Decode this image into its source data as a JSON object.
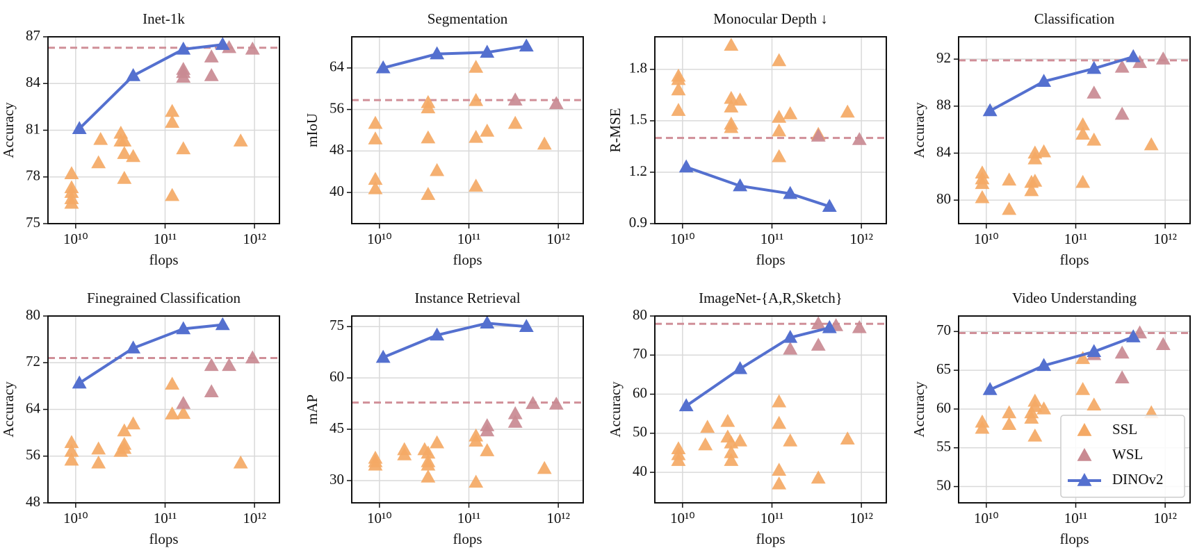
{
  "chart_data": [
    {
      "type": "scatter",
      "title": "Inet-1k",
      "x_label": "flops",
      "y_label": "Accuracy",
      "xscale": "log",
      "grid": true,
      "xlim": [
        4900000000.0,
        1900000000000.0
      ],
      "xticks": [
        {
          "value": 10000000000.0,
          "label": "10¹⁰"
        },
        {
          "value": 100000000000.0,
          "label": "10¹¹"
        },
        {
          "value": 1000000000000.0,
          "label": "10¹²"
        }
      ],
      "ylim": [
        75,
        87
      ],
      "yticks": [
        75,
        78,
        81,
        84,
        87
      ],
      "hline": 86.3,
      "hline_color": "#d08f98",
      "series": [
        {
          "mode": "markers",
          "color": "#f4a965",
          "x": [
            9000000000.0,
            9000000000.0,
            9000000000.0,
            9000000000.0,
            9000000000.0,
            19000000000.0,
            18000000000.0,
            32000000000.0,
            32000000000.0,
            35000000000.0,
            35000000000.0,
            35000000000.0,
            44000000000.0,
            120000000000.0,
            120000000000.0,
            120000000000.0,
            160000000000.0,
            700000000000.0
          ],
          "values": [
            78.2,
            77.3,
            77.0,
            76.6,
            76.3,
            80.4,
            78.9,
            80.8,
            80.3,
            80.3,
            79.5,
            77.9,
            79.3,
            82.2,
            81.5,
            76.8,
            79.8,
            80.3
          ]
        },
        {
          "mode": "markers",
          "color": "#c98a92",
          "x": [
            160000000000.0,
            160000000000.0,
            160000000000.0,
            330000000000.0,
            330000000000.0,
            520000000000.0,
            950000000000.0
          ],
          "values": [
            84.9,
            84.7,
            84.4,
            85.7,
            84.5,
            86.3,
            86.2
          ]
        },
        {
          "mode": "line",
          "color": "#5470cf",
          "x": [
            11000000000.0,
            44000000000.0,
            160000000000.0,
            440000000000.0
          ],
          "values": [
            81.1,
            84.5,
            86.2,
            86.5
          ]
        }
      ]
    },
    {
      "type": "scatter",
      "title": "Segmentation",
      "x_label": "flops",
      "y_label": "mIoU",
      "xscale": "log",
      "grid": true,
      "xlim": [
        4900000000.0,
        1900000000000.0
      ],
      "xticks": [
        {
          "value": 10000000000.0,
          "label": "10¹⁰"
        },
        {
          "value": 100000000000.0,
          "label": "10¹¹"
        },
        {
          "value": 1000000000000.0,
          "label": "10¹²"
        }
      ],
      "ylim": [
        34,
        70
      ],
      "yticks": [
        40,
        48,
        56,
        64
      ],
      "hline": 57.8,
      "hline_color": "#d08f98",
      "series": [
        {
          "mode": "markers",
          "color": "#f4a965",
          "x": [
            9000000000.0,
            9000000000.0,
            9000000000.0,
            9000000000.0,
            35000000000.0,
            35000000000.0,
            35000000000.0,
            35000000000.0,
            44000000000.0,
            120000000000.0,
            120000000000.0,
            120000000000.0,
            120000000000.0,
            160000000000.0,
            700000000000.0,
            330000000000.0
          ],
          "values": [
            53.3,
            50.3,
            42.5,
            40.7,
            57.3,
            56.3,
            50.5,
            39.6,
            44.2,
            64.1,
            57.7,
            50.6,
            41.2,
            51.8,
            49.3,
            53.3
          ]
        },
        {
          "mode": "markers",
          "color": "#c98a92",
          "x": [
            330000000000.0,
            950000000000.0
          ],
          "values": [
            57.8,
            57.1
          ]
        },
        {
          "mode": "line",
          "color": "#5470cf",
          "x": [
            11000000000.0,
            44000000000.0,
            160000000000.0,
            440000000000.0
          ],
          "values": [
            64,
            66.7,
            67,
            68.2
          ]
        }
      ]
    },
    {
      "type": "scatter",
      "title": "Monocular Depth ↓",
      "x_label": "flops",
      "y_label": "R-MSE",
      "xscale": "log",
      "grid": true,
      "xlim": [
        4900000000.0,
        1900000000000.0
      ],
      "xticks": [
        {
          "value": 10000000000.0,
          "label": "10¹⁰"
        },
        {
          "value": 100000000000.0,
          "label": "10¹¹"
        },
        {
          "value": 1000000000000.0,
          "label": "10¹²"
        }
      ],
      "ylim": [
        0.9,
        1.99
      ],
      "yticks": [
        0.9,
        1.2,
        1.5,
        1.8
      ],
      "hline": 1.4,
      "hline_color": "#d08f98",
      "series": [
        {
          "mode": "markers",
          "color": "#f4a965",
          "x": [
            9000000000.0,
            9000000000.0,
            9000000000.0,
            9000000000.0,
            35000000000.0,
            35000000000.0,
            35000000000.0,
            35000000000.0,
            35000000000.0,
            44000000000.0,
            120000000000.0,
            120000000000.0,
            120000000000.0,
            120000000000.0,
            160000000000.0,
            700000000000.0,
            330000000000.0
          ],
          "values": [
            1.76,
            1.74,
            1.68,
            1.56,
            1.94,
            1.63,
            1.58,
            1.48,
            1.46,
            1.62,
            1.85,
            1.52,
            1.44,
            1.29,
            1.54,
            1.55,
            1.42
          ]
        },
        {
          "mode": "markers",
          "color": "#c98a92",
          "x": [
            330000000000.0,
            950000000000.0
          ],
          "values": [
            1.41,
            1.39
          ]
        },
        {
          "mode": "line",
          "color": "#5470cf",
          "x": [
            11000000000.0,
            44000000000.0,
            160000000000.0,
            440000000000.0
          ],
          "values": [
            1.23,
            1.12,
            1.075,
            1.0
          ]
        }
      ]
    },
    {
      "type": "scatter",
      "title": "Classification",
      "x_label": "flops",
      "y_label": "Accuracy",
      "xscale": "log",
      "grid": true,
      "xlim": [
        4900000000.0,
        1900000000000.0
      ],
      "xticks": [
        {
          "value": 10000000000.0,
          "label": "10¹⁰"
        },
        {
          "value": 100000000000.0,
          "label": "10¹¹"
        },
        {
          "value": 1000000000000.0,
          "label": "10¹²"
        }
      ],
      "ylim": [
        78,
        93.9
      ],
      "yticks": [
        80,
        84,
        88,
        92
      ],
      "hline": 91.9,
      "hline_color": "#d08f98",
      "series": [
        {
          "mode": "markers",
          "color": "#f4a965",
          "x": [
            9000000000.0,
            9000000000.0,
            9000000000.0,
            9000000000.0,
            18000000000.0,
            18000000000.0,
            32000000000.0,
            32000000000.0,
            35000000000.0,
            35000000000.0,
            35000000000.0,
            44000000000.0,
            120000000000.0,
            120000000000.0,
            120000000000.0,
            160000000000.0,
            700000000000.0
          ],
          "values": [
            82.3,
            81.8,
            81.4,
            80.2,
            81.7,
            79.2,
            81.5,
            80.8,
            84,
            83.5,
            81.6,
            84.1,
            86.4,
            85.6,
            81.5,
            85.1,
            84.7
          ]
        },
        {
          "mode": "markers",
          "color": "#c98a92",
          "x": [
            160000000000.0,
            330000000000.0,
            330000000000.0,
            520000000000.0,
            950000000000.0
          ],
          "values": [
            89.1,
            87.3,
            91.3,
            91.7,
            92
          ]
        },
        {
          "mode": "line",
          "color": "#5470cf",
          "x": [
            11000000000.0,
            44000000000.0,
            160000000000.0,
            440000000000.0
          ],
          "values": [
            87.6,
            90.1,
            91.2,
            92.2
          ]
        }
      ]
    },
    {
      "type": "scatter",
      "title": "Finegrained Classification",
      "x_label": "flops",
      "y_label": "Accuracy",
      "xscale": "log",
      "grid": true,
      "xlim": [
        4900000000.0,
        1900000000000.0
      ],
      "xticks": [
        {
          "value": 10000000000.0,
          "label": "10¹⁰"
        },
        {
          "value": 100000000000.0,
          "label": "10¹¹"
        },
        {
          "value": 1000000000000.0,
          "label": "10¹²"
        }
      ],
      "ylim": [
        48,
        80
      ],
      "yticks": [
        48,
        56,
        64,
        72,
        80
      ],
      "hline": 72.8,
      "hline_color": "#d08f98",
      "series": [
        {
          "mode": "markers",
          "color": "#f4a965",
          "x": [
            9000000000.0,
            9000000000.0,
            9000000000.0,
            18000000000.0,
            18000000000.0,
            32000000000.0,
            35000000000.0,
            35000000000.0,
            35000000000.0,
            44000000000.0,
            120000000000.0,
            120000000000.0,
            160000000000.0,
            700000000000.0
          ],
          "values": [
            58.3,
            56.8,
            55.3,
            57.2,
            54.8,
            56.8,
            60.3,
            58,
            57.3,
            61.5,
            68.3,
            63.2,
            63.3,
            54.8
          ]
        },
        {
          "mode": "markers",
          "color": "#c98a92",
          "x": [
            160000000000.0,
            330000000000.0,
            330000000000.0,
            520000000000.0,
            950000000000.0
          ],
          "values": [
            65,
            71.5,
            67,
            71.5,
            72.8
          ]
        },
        {
          "mode": "line",
          "color": "#5470cf",
          "x": [
            11000000000.0,
            44000000000.0,
            160000000000.0,
            440000000000.0
          ],
          "values": [
            68.5,
            74.5,
            77.8,
            78.5
          ]
        }
      ]
    },
    {
      "type": "scatter",
      "title": "Instance Retrieval",
      "x_label": "flops",
      "y_label": "mAP",
      "xscale": "log",
      "grid": true,
      "xlim": [
        4900000000.0,
        1900000000000.0
      ],
      "xticks": [
        {
          "value": 10000000000.0,
          "label": "10¹⁰"
        },
        {
          "value": 100000000000.0,
          "label": "10¹¹"
        },
        {
          "value": 1000000000000.0,
          "label": "10¹²"
        }
      ],
      "ylim": [
        23.5,
        78.1
      ],
      "yticks": [
        30,
        45,
        60,
        75
      ],
      "hline": 52.8,
      "hline_color": "#d08f98",
      "series": [
        {
          "mode": "markers",
          "color": "#f4a965",
          "x": [
            9000000000.0,
            9000000000.0,
            9000000000.0,
            19000000000.0,
            19000000000.0,
            32000000000.0,
            35000000000.0,
            35000000000.0,
            35000000000.0,
            35000000000.0,
            44000000000.0,
            120000000000.0,
            120000000000.0,
            120000000000.0,
            160000000000.0,
            700000000000.0
          ],
          "values": [
            36.5,
            35.5,
            34.5,
            39,
            37.5,
            39,
            38,
            35.5,
            34.5,
            31,
            41,
            43,
            41.5,
            29.5,
            38.7,
            33.5
          ]
        },
        {
          "mode": "markers",
          "color": "#c98a92",
          "x": [
            160000000000.0,
            160000000000.0,
            330000000000.0,
            330000000000.0,
            520000000000.0,
            950000000000.0
          ],
          "values": [
            46,
            44.5,
            49.5,
            47,
            52.5,
            52.3
          ]
        },
        {
          "mode": "line",
          "color": "#5470cf",
          "x": [
            11000000000.0,
            44000000000.0,
            160000000000.0,
            440000000000.0
          ],
          "values": [
            66,
            72.5,
            76,
            75
          ]
        }
      ]
    },
    {
      "type": "scatter",
      "title": "ImageNet-{A,R,Sketch}",
      "x_label": "flops",
      "y_label": "Accuracy",
      "xscale": "log",
      "grid": true,
      "xlim": [
        4900000000.0,
        1900000000000.0
      ],
      "xticks": [
        {
          "value": 10000000000.0,
          "label": "10¹⁰"
        },
        {
          "value": 100000000000.0,
          "label": "10¹¹"
        },
        {
          "value": 1000000000000.0,
          "label": "10¹²"
        }
      ],
      "ylim": [
        32.2,
        80
      ],
      "yticks": [
        40,
        50,
        60,
        70,
        80
      ],
      "hline": 78,
      "hline_color": "#d08f98",
      "series": [
        {
          "mode": "markers",
          "color": "#f4a965",
          "x": [
            9000000000.0,
            9000000000.0,
            9000000000.0,
            19000000000.0,
            18000000000.0,
            32000000000.0,
            32000000000.0,
            35000000000.0,
            35000000000.0,
            35000000000.0,
            44000000000.0,
            120000000000.0,
            120000000000.0,
            120000000000.0,
            120000000000.0,
            160000000000.0,
            330000000000.0,
            700000000000.0
          ],
          "values": [
            46,
            44.5,
            43,
            51.5,
            47,
            53,
            49,
            47.5,
            45,
            43,
            48,
            58,
            52.5,
            40.5,
            37,
            48,
            38.5,
            48.5
          ]
        },
        {
          "mode": "markers",
          "color": "#c98a92",
          "x": [
            160000000000.0,
            330000000000.0,
            330000000000.0,
            520000000000.0,
            950000000000.0
          ],
          "values": [
            71.5,
            78,
            72.5,
            77.5,
            77
          ]
        },
        {
          "mode": "line",
          "color": "#5470cf",
          "x": [
            11000000000.0,
            44000000000.0,
            160000000000.0,
            440000000000.0
          ],
          "values": [
            57,
            66.5,
            74.5,
            77
          ]
        }
      ]
    },
    {
      "type": "scatter",
      "title": "Video Understanding",
      "x_label": "flops",
      "y_label": "Accuracy",
      "xscale": "log",
      "grid": true,
      "legend": "lower right",
      "xlim": [
        4900000000.0,
        1900000000000.0
      ],
      "xticks": [
        {
          "value": 10000000000.0,
          "label": "10¹⁰"
        },
        {
          "value": 100000000000.0,
          "label": "10¹¹"
        },
        {
          "value": 1000000000000.0,
          "label": "10¹²"
        }
      ],
      "ylim": [
        47.9,
        72
      ],
      "yticks": [
        50,
        55,
        60,
        65,
        70
      ],
      "hline": 69.8,
      "hline_color": "#d08f98",
      "series": [
        {
          "name": "SSL",
          "mode": "markers",
          "color": "#f4a965",
          "x": [
            9000000000.0,
            9000000000.0,
            18000000000.0,
            18000000000.0,
            32000000000.0,
            32000000000.0,
            35000000000.0,
            35000000000.0,
            35000000000.0,
            44000000000.0,
            120000000000.0,
            120000000000.0,
            160000000000.0,
            700000000000.0
          ],
          "values": [
            58.3,
            57.5,
            59.5,
            58,
            59.5,
            58.8,
            61,
            60.3,
            56.5,
            60,
            66.5,
            62.5,
            60.5,
            59.5
          ]
        },
        {
          "name": "WSL",
          "mode": "markers",
          "color": "#c98a92",
          "x": [
            160000000000.0,
            330000000000.0,
            330000000000.0,
            520000000000.0,
            950000000000.0
          ],
          "values": [
            67,
            67.2,
            64,
            69.8,
            68.3
          ]
        },
        {
          "name": "DINOv2",
          "mode": "line",
          "color": "#5470cf",
          "x": [
            11000000000.0,
            44000000000.0,
            160000000000.0,
            440000000000.0
          ],
          "values": [
            62.5,
            65.6,
            67.4,
            69.3
          ]
        }
      ]
    }
  ]
}
